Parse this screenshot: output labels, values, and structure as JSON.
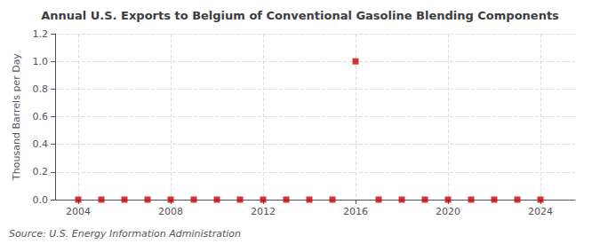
{
  "chart_data": {
    "type": "scatter",
    "title": "Annual U.S. Exports to Belgium of Conventional Gasoline Blending Components",
    "ylabel": "Thousand Barrels per Day",
    "source": "Source: U.S. Energy Information Administration",
    "x": [
      2004,
      2005,
      2006,
      2007,
      2008,
      2009,
      2010,
      2011,
      2012,
      2013,
      2014,
      2015,
      2016,
      2017,
      2018,
      2019,
      2020,
      2021,
      2022,
      2023,
      2024
    ],
    "values": [
      0.0,
      0.0,
      0.0,
      0.0,
      0.0,
      0.0,
      0.0,
      0.0,
      0.0,
      0.0,
      0.0,
      0.0,
      1.0,
      0.0,
      0.0,
      0.0,
      0.0,
      0.0,
      0.0,
      0.0,
      0.0
    ],
    "color": "#cc0000",
    "marker": "square",
    "xlim": [
      2003.0,
      2025.5
    ],
    "xticks": [
      2004,
      2008,
      2012,
      2016,
      2020,
      2024
    ],
    "ylim": [
      0.0,
      1.2
    ],
    "yticks": [
      {
        "value": 0.0,
        "label": "0.0"
      },
      0.2,
      0.4,
      0.6,
      0.8,
      {
        "value": 1.0,
        "label": "1.0"
      },
      1.2
    ],
    "grid": true
  }
}
